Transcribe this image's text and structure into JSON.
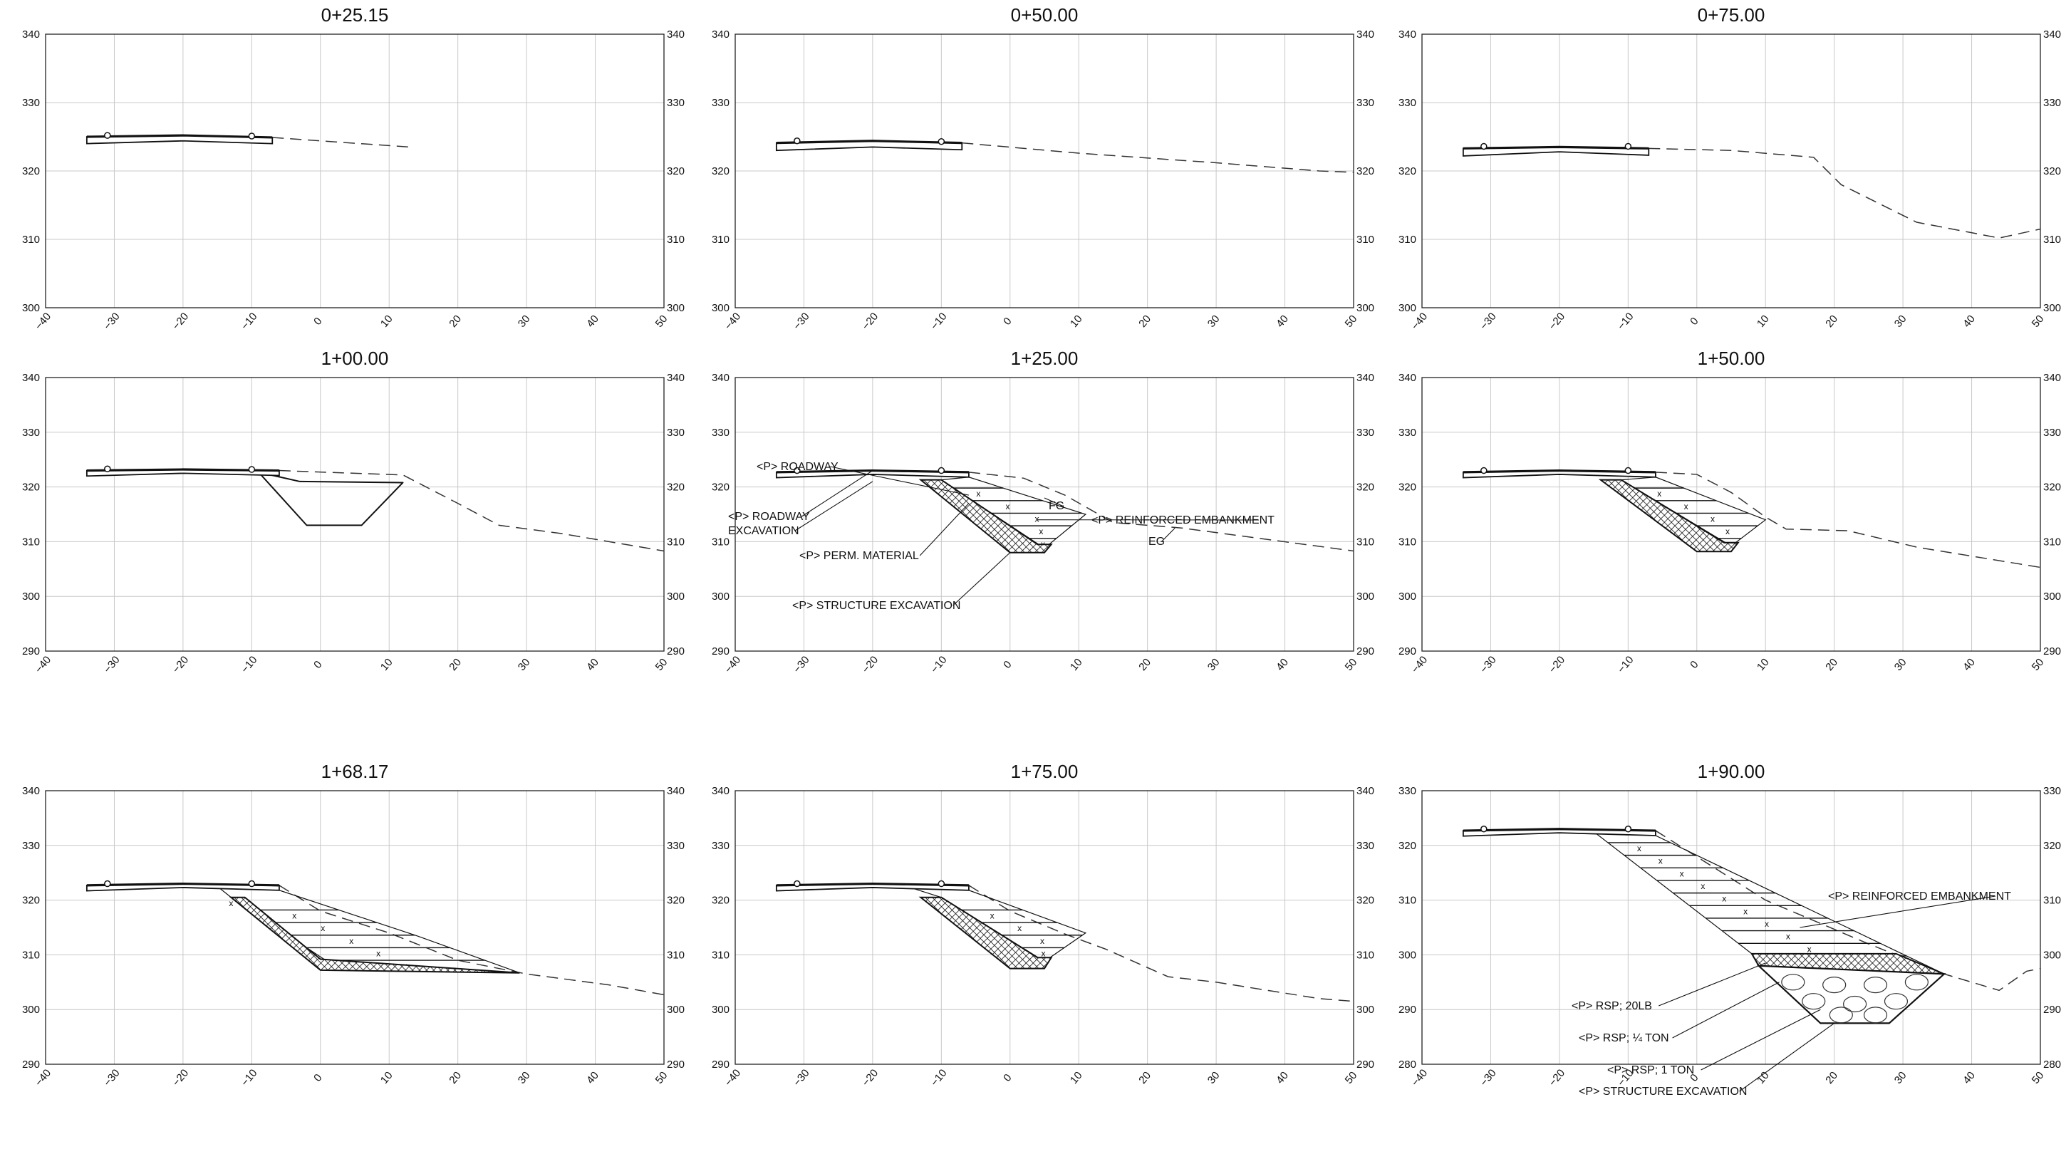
{
  "sheet": {
    "panels": [
      {
        "title": "0+25.15",
        "x_ticks": [
          -40,
          -30,
          -20,
          -10,
          0,
          10,
          20,
          30,
          40,
          50
        ],
        "y_ticks": [
          300,
          310,
          320,
          330,
          340
        ],
        "ylim": [
          300,
          340
        ],
        "road": [
          [
            -34,
            325.0
          ],
          [
            -20,
            325.2
          ],
          [
            -7,
            324.9
          ]
        ],
        "road_bottom": [
          [
            -34,
            324.0
          ],
          [
            -20,
            324.4
          ],
          [
            -7,
            324.0
          ]
        ],
        "markers": [
          [
            -31,
            325.2
          ],
          [
            -10,
            325.1
          ]
        ],
        "existing_ground": [
          [
            -7,
            324.9
          ],
          [
            0,
            324.4
          ],
          [
            13,
            323.5
          ]
        ],
        "cut": [],
        "riprap": [],
        "rsp_rock": [],
        "fill": [],
        "labels": []
      },
      {
        "title": "0+50.00",
        "x_ticks": [
          -40,
          -30,
          -20,
          -10,
          0,
          10,
          20,
          30,
          40,
          50
        ],
        "y_ticks": [
          300,
          310,
          320,
          330,
          340
        ],
        "ylim": [
          300,
          340
        ],
        "road": [
          [
            -34,
            324.1
          ],
          [
            -20,
            324.4
          ],
          [
            -7,
            324.1
          ]
        ],
        "road_bottom": [
          [
            -34,
            323.0
          ],
          [
            -20,
            323.5
          ],
          [
            -7,
            323.1
          ]
        ],
        "markers": [
          [
            -31,
            324.4
          ],
          [
            -10,
            324.3
          ]
        ],
        "existing_ground": [
          [
            -7,
            324.1
          ],
          [
            10,
            322.6
          ],
          [
            30,
            321.2
          ],
          [
            45,
            320.0
          ],
          [
            50,
            319.8
          ]
        ],
        "cut": [],
        "riprap": [],
        "rsp_rock": [],
        "fill": [],
        "labels": []
      },
      {
        "title": "0+75.00",
        "x_ticks": [
          -40,
          -30,
          -20,
          -10,
          0,
          10,
          20,
          30,
          40,
          50
        ],
        "y_ticks": [
          300,
          310,
          320,
          330,
          340
        ],
        "ylim": [
          300,
          340
        ],
        "road": [
          [
            -34,
            323.3
          ],
          [
            -20,
            323.5
          ],
          [
            -7,
            323.3
          ]
        ],
        "road_bottom": [
          [
            -34,
            322.2
          ],
          [
            -20,
            322.8
          ],
          [
            -7,
            322.3
          ]
        ],
        "markers": [
          [
            -31,
            323.6
          ],
          [
            -10,
            323.6
          ]
        ],
        "existing_ground": [
          [
            -7,
            323.3
          ],
          [
            5,
            323.0
          ],
          [
            17,
            322.0
          ],
          [
            21,
            318.0
          ],
          [
            32,
            312.5
          ],
          [
            44,
            310.2
          ],
          [
            50,
            311.5
          ]
        ],
        "cut": [],
        "riprap": [],
        "rsp_rock": [],
        "fill": [],
        "labels": []
      },
      {
        "title": "1+00.00",
        "x_ticks": [
          -40,
          -30,
          -20,
          -10,
          0,
          10,
          20,
          30,
          40,
          50
        ],
        "y_ticks": [
          290,
          300,
          310,
          320,
          330,
          340
        ],
        "ylim": [
          290,
          340
        ],
        "road": [
          [
            -34,
            323.0
          ],
          [
            -20,
            323.2
          ],
          [
            -6,
            323.0
          ]
        ],
        "road_bottom": [
          [
            -34,
            322.0
          ],
          [
            -20,
            322.5
          ],
          [
            -6,
            322.1
          ]
        ],
        "markers": [
          [
            -31,
            323.3
          ],
          [
            -10,
            323.2
          ]
        ],
        "existing_ground": [
          [
            -6,
            323.0
          ],
          [
            5,
            322.5
          ],
          [
            12,
            322.2
          ],
          [
            20,
            317.0
          ],
          [
            26,
            313.0
          ],
          [
            35,
            311.5
          ],
          [
            50,
            308.3
          ]
        ],
        "cut": [
          [
            -9,
            322.7
          ],
          [
            -3,
            321.0
          ],
          [
            12,
            320.8
          ],
          [
            6,
            313.0
          ],
          [
            -2,
            313.0
          ],
          [
            -9,
            322.7
          ]
        ],
        "riprap": [],
        "rsp_rock": [],
        "fill": [],
        "labels": []
      },
      {
        "title": "1+25.00",
        "x_ticks": [
          -40,
          -30,
          -20,
          -10,
          0,
          10,
          20,
          30,
          40,
          50
        ],
        "y_ticks": [
          290,
          300,
          310,
          320,
          330,
          340
        ],
        "ylim": [
          290,
          340
        ],
        "road": [
          [
            -34,
            322.7
          ],
          [
            -20,
            323.0
          ],
          [
            -6,
            322.7
          ]
        ],
        "road_bottom": [
          [
            -34,
            321.7
          ],
          [
            -20,
            322.3
          ],
          [
            -6,
            321.8
          ]
        ],
        "markers": [
          [
            -31,
            323.0
          ],
          [
            -10,
            323.0
          ]
        ],
        "existing_ground": [
          [
            -6,
            322.7
          ],
          [
            2,
            321.6
          ],
          [
            8,
            318.5
          ],
          [
            15,
            313.5
          ],
          [
            25,
            312.5
          ],
          [
            50,
            308.3
          ]
        ],
        "cut": [],
        "riprap": [
          [
            -13,
            321.3
          ],
          [
            -10,
            321.3
          ],
          [
            4,
            309.5
          ],
          [
            6,
            309.5
          ],
          [
            5,
            308.0
          ],
          [
            0,
            308.0
          ],
          [
            -13,
            321.3
          ]
        ],
        "rsp_rock": [],
        "fill": [
          [
            -10,
            321.3
          ],
          [
            -6,
            321.8
          ],
          [
            11,
            315.0
          ],
          [
            5,
            308.8
          ],
          [
            -10,
            321.3
          ]
        ],
        "labels": [
          {
            "text": "<P> ROADWAY",
            "ax": -6,
            "ay": 318.5
          },
          {
            "text": "<P> ROADWAY",
            "ax": -20,
            "ay": 323
          },
          {
            "text": "EXCAVATION",
            "ax": -20,
            "ay": 321
          },
          {
            "text": "<P> PERM. MATERIAL",
            "ax": -6,
            "ay": 317
          },
          {
            "text": "<P> STRUCTURE EXCAVATION",
            "ax": 0,
            "ay": 308
          },
          {
            "text": "FG",
            "ax": 5,
            "ay": 318
          },
          {
            "text": "<P> REINFORCED EMBANKMENT",
            "ax": 4,
            "ay": 314
          },
          {
            "text": "EG",
            "ax": 24,
            "ay": 312.5
          }
        ]
      },
      {
        "title": "1+50.00",
        "x_ticks": [
          -40,
          -30,
          -20,
          -10,
          0,
          10,
          20,
          30,
          40,
          50
        ],
        "y_ticks": [
          290,
          300,
          310,
          320,
          330,
          340
        ],
        "ylim": [
          290,
          340
        ],
        "road": [
          [
            -34,
            322.7
          ],
          [
            -20,
            323.0
          ],
          [
            -6,
            322.7
          ]
        ],
        "road_bottom": [
          [
            -34,
            321.7
          ],
          [
            -20,
            322.3
          ],
          [
            -6,
            321.8
          ]
        ],
        "markers": [
          [
            -31,
            323.0
          ],
          [
            -10,
            323.0
          ]
        ],
        "existing_ground": [
          [
            -6,
            322.7
          ],
          [
            0,
            322.3
          ],
          [
            5,
            319.0
          ],
          [
            10,
            314.5
          ],
          [
            13,
            312.3
          ],
          [
            22,
            312.0
          ],
          [
            32,
            309.0
          ],
          [
            50,
            305.3
          ]
        ],
        "cut": [],
        "riprap": [
          [
            -14,
            321.3
          ],
          [
            -11,
            321.3
          ],
          [
            4,
            309.8
          ],
          [
            6,
            309.8
          ],
          [
            5,
            308.2
          ],
          [
            0,
            308.2
          ],
          [
            -14,
            321.3
          ]
        ],
        "rsp_rock": [],
        "fill": [
          [
            -11,
            321.3
          ],
          [
            -6,
            321.8
          ],
          [
            10,
            314.0
          ],
          [
            5,
            309.2
          ],
          [
            -11,
            321.3
          ]
        ],
        "labels": []
      },
      {
        "title": "1+68.17",
        "x_ticks": [
          -40,
          -30,
          -20,
          -10,
          0,
          10,
          20,
          30,
          40,
          50
        ],
        "y_ticks": [
          290,
          300,
          310,
          320,
          330,
          340
        ],
        "ylim": [
          290,
          340
        ],
        "road": [
          [
            -34,
            322.7
          ],
          [
            -20,
            323.0
          ],
          [
            -6,
            322.7
          ]
        ],
        "road_bottom": [
          [
            -34,
            321.7
          ],
          [
            -20,
            322.3
          ],
          [
            -6,
            321.8
          ]
        ],
        "markers": [
          [
            -31,
            323.0
          ],
          [
            -10,
            323.0
          ]
        ],
        "existing_ground": [
          [
            -6,
            322.7
          ],
          [
            0,
            318.0
          ],
          [
            10,
            314.0
          ],
          [
            20,
            309.0
          ],
          [
            30,
            306.5
          ],
          [
            42,
            304.5
          ],
          [
            50,
            302.7
          ]
        ],
        "cut": [],
        "riprap": [
          [
            -13,
            320.5
          ],
          [
            -11,
            320.5
          ],
          [
            0,
            309.2
          ],
          [
            29,
            306.7
          ],
          [
            0,
            307.2
          ],
          [
            -13,
            320.5
          ]
        ],
        "rsp_rock": [],
        "fill": [
          [
            -15,
            322.5
          ],
          [
            -6,
            321.8
          ],
          [
            14,
            313.5
          ],
          [
            29,
            306.7
          ],
          [
            1,
            308.8
          ],
          [
            -13,
            320.5
          ],
          [
            -15,
            322.5
          ]
        ],
        "labels": []
      },
      {
        "title": "1+75.00",
        "x_ticks": [
          -40,
          -30,
          -20,
          -10,
          0,
          10,
          20,
          30,
          40,
          50
        ],
        "y_ticks": [
          290,
          300,
          310,
          320,
          330,
          340
        ],
        "ylim": [
          290,
          340
        ],
        "road": [
          [
            -34,
            322.7
          ],
          [
            -20,
            323.0
          ],
          [
            -6,
            322.7
          ]
        ],
        "road_bottom": [
          [
            -34,
            321.7
          ],
          [
            -20,
            322.3
          ],
          [
            -6,
            321.8
          ]
        ],
        "markers": [
          [
            -31,
            323.0
          ],
          [
            -10,
            323.0
          ]
        ],
        "existing_ground": [
          [
            -6,
            322.7
          ],
          [
            0,
            318.0
          ],
          [
            8,
            313.8
          ],
          [
            14,
            311.0
          ],
          [
            23,
            306.0
          ],
          [
            30,
            305.0
          ],
          [
            45,
            302.0
          ],
          [
            50,
            301.5
          ]
        ],
        "cut": [],
        "riprap": [
          [
            -13,
            320.5
          ],
          [
            -10,
            320.5
          ],
          [
            4,
            309.5
          ],
          [
            6,
            309.5
          ],
          [
            5,
            307.5
          ],
          [
            0,
            307.5
          ],
          [
            -13,
            320.5
          ]
        ],
        "rsp_rock": [],
        "fill": [
          [
            -15,
            322.5
          ],
          [
            -6,
            321.8
          ],
          [
            11,
            314.0
          ],
          [
            5,
            308.8
          ],
          [
            -10,
            320.5
          ],
          [
            -15,
            322.5
          ]
        ],
        "labels": []
      },
      {
        "title": "1+90.00",
        "x_ticks": [
          -40,
          -30,
          -20,
          -10,
          0,
          10,
          20,
          30,
          40,
          50
        ],
        "y_ticks": [
          280,
          290,
          300,
          310,
          320,
          330
        ],
        "ylim": [
          280,
          330
        ],
        "road": [
          [
            -34,
            322.7
          ],
          [
            -20,
            323.0
          ],
          [
            -6,
            322.7
          ]
        ],
        "road_bottom": [
          [
            -34,
            321.7
          ],
          [
            -20,
            322.3
          ],
          [
            -6,
            321.8
          ]
        ],
        "markers": [
          [
            -31,
            323.0
          ],
          [
            -10,
            323.0
          ]
        ],
        "existing_ground": [
          [
            -6,
            322.7
          ],
          [
            10,
            310.0
          ],
          [
            25,
            302.0
          ],
          [
            36,
            296.5
          ],
          [
            44,
            293.5
          ],
          [
            48,
            297.0
          ],
          [
            50,
            297.5
          ]
        ],
        "cut": [],
        "riprap": [
          [
            8,
            300.2
          ],
          [
            29,
            300.2
          ],
          [
            36,
            296.5
          ],
          [
            9,
            298.0
          ],
          [
            8,
            300.2
          ]
        ],
        "rsp_rock": [
          [
            9,
            298.0
          ],
          [
            36,
            296.5
          ],
          [
            28,
            287.5
          ],
          [
            18,
            287.5
          ],
          [
            9,
            298.0
          ]
        ],
        "fill": [
          [
            -15,
            322.5
          ],
          [
            -6,
            321.8
          ],
          [
            36,
            296.5
          ],
          [
            29,
            300.2
          ],
          [
            8,
            300.2
          ],
          [
            -15,
            322.5
          ]
        ],
        "labels": [
          {
            "text": "<P> REINFORCED EMBANKMENT",
            "ax": 15,
            "ay": 305
          },
          {
            "text": "<P> RSP; 20LB",
            "ax": 10,
            "ay": 298.5
          },
          {
            "text": "<P> RSP; ¼ TON",
            "ax": 12,
            "ay": 295
          },
          {
            "text": "<P> RSP; 1 TON",
            "ax": 18,
            "ay": 290
          },
          {
            "text": "<P> STRUCTURE EXCAVATION",
            "ax": 20,
            "ay": 287.5
          }
        ]
      }
    ]
  }
}
